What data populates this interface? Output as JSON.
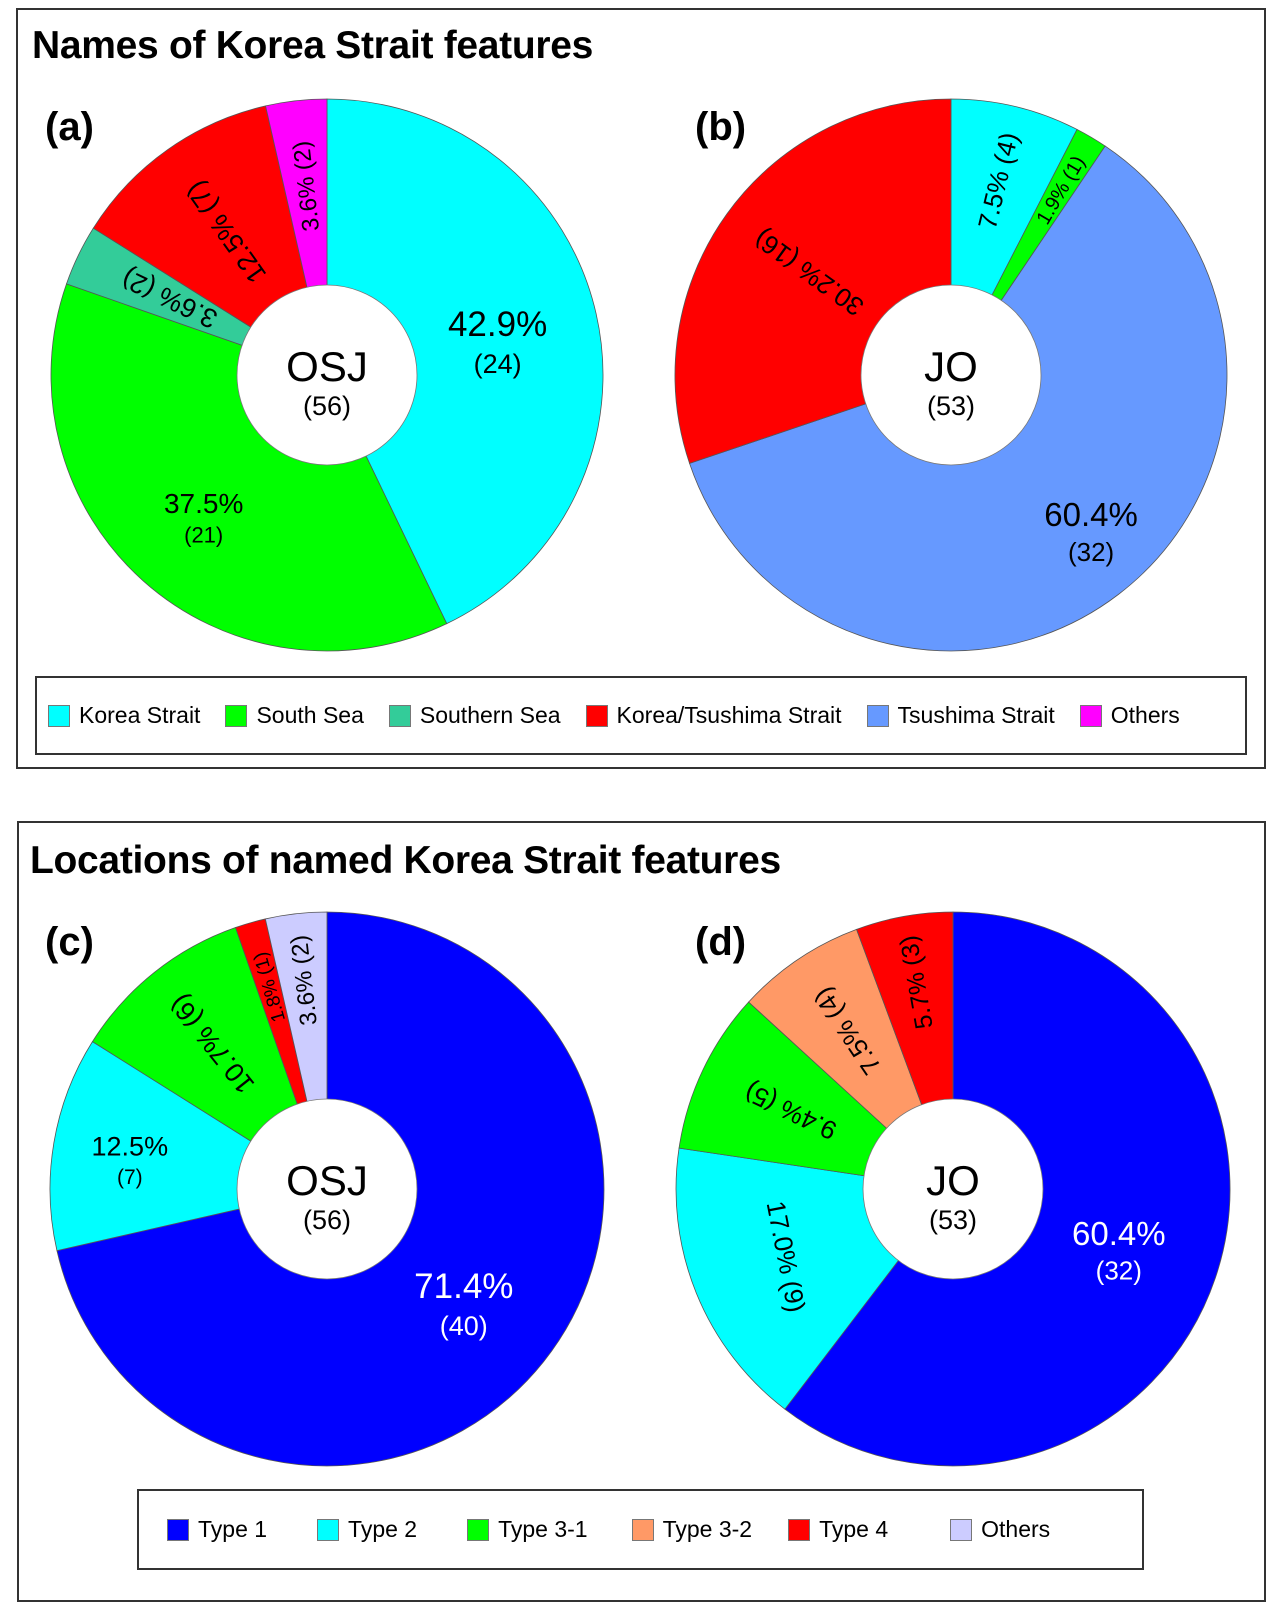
{
  "panels": [
    {
      "title": "Names of Korea Strait features",
      "legend": [
        {
          "label": "Korea Strait",
          "color": "#00FFFF"
        },
        {
          "label": "South Sea",
          "color": "#00FF00"
        },
        {
          "label": "Southern Sea",
          "color": "#33CC99"
        },
        {
          "label": "Korea/Tsushima Strait",
          "color": "#FF0000"
        },
        {
          "label": "Tsushima Strait",
          "color": "#6699FF"
        },
        {
          "label": "Others",
          "color": "#FF00FF"
        }
      ]
    },
    {
      "title": "Locations of named Korea Strait features",
      "legend": [
        {
          "label": "Type 1",
          "color": "#0000FF"
        },
        {
          "label": "Type 2",
          "color": "#00FFFF"
        },
        {
          "label": "Type 3-1",
          "color": "#00FF00"
        },
        {
          "label": "Type 3-2",
          "color": "#FF9966"
        },
        {
          "label": "Type 4",
          "color": "#FF0000"
        },
        {
          "label": "Others",
          "color": "#CCCCFF"
        }
      ]
    }
  ],
  "chart_data": [
    {
      "type": "pie",
      "id": "a",
      "panel_label": "(a)",
      "title": "Names of Korea Strait features",
      "center_label": "OSJ",
      "center_total": "(56)",
      "total": 56,
      "start": "12 o'clock, clockwise",
      "slices": [
        {
          "name": "Korea Strait",
          "value": 24,
          "percent": "42.9%",
          "count": "(24)",
          "color": "#00FFFF",
          "text_color": "#000000"
        },
        {
          "name": "South Sea",
          "value": 21,
          "percent": "37.5%",
          "count": "(21)",
          "color": "#00FF00",
          "text_color": "#000000"
        },
        {
          "name": "Southern Sea",
          "value": 2,
          "percent": "3.6%",
          "count": "(2)",
          "color": "#33CC99",
          "text_color": "#000000"
        },
        {
          "name": "Korea/Tsushima Strait",
          "value": 7,
          "percent": "12.5%",
          "count": "(7)",
          "color": "#FF0000",
          "text_color": "#000000"
        },
        {
          "name": "Others",
          "value": 2,
          "percent": "3.6%",
          "count": "(2)",
          "color": "#FF00FF",
          "text_color": "#000000"
        }
      ]
    },
    {
      "type": "pie",
      "id": "b",
      "panel_label": "(b)",
      "title": "Names of Korea Strait features",
      "center_label": "JO",
      "center_total": "(53)",
      "total": 53,
      "start": "12 o'clock, clockwise",
      "slices": [
        {
          "name": "Korea Strait",
          "value": 4,
          "percent": "7.5%",
          "count": "(4)",
          "color": "#00FFFF",
          "text_color": "#000000"
        },
        {
          "name": "South Sea",
          "value": 1,
          "percent": "1.9%",
          "count": "(1)",
          "color": "#00FF00",
          "text_color": "#000000"
        },
        {
          "name": "Tsushima Strait",
          "value": 32,
          "percent": "60.4%",
          "count": "(32)",
          "color": "#6699FF",
          "text_color": "#000000"
        },
        {
          "name": "Korea/Tsushima Strait",
          "value": 16,
          "percent": "30.2%",
          "count": "(16)",
          "color": "#FF0000",
          "text_color": "#000000"
        }
      ]
    },
    {
      "type": "pie",
      "id": "c",
      "panel_label": "(c)",
      "title": "Locations of named Korea Strait features",
      "center_label": "OSJ",
      "center_total": "(56)",
      "total": 56,
      "start": "12 o'clock, clockwise",
      "slices": [
        {
          "name": "Type 1",
          "value": 40,
          "percent": "71.4%",
          "count": "(40)",
          "color": "#0000FF",
          "text_color": "#FFFFFF"
        },
        {
          "name": "Type 2",
          "value": 7,
          "percent": "12.5%",
          "count": "(7)",
          "color": "#00FFFF",
          "text_color": "#000000"
        },
        {
          "name": "Type 3-1",
          "value": 6,
          "percent": "10.7%",
          "count": "(6)",
          "color": "#00FF00",
          "text_color": "#000000"
        },
        {
          "name": "Type 4",
          "value": 1,
          "percent": "1.8%",
          "count": "(1)",
          "color": "#FF0000",
          "text_color": "#000000"
        },
        {
          "name": "Others",
          "value": 2,
          "percent": "3.6%",
          "count": "(2)",
          "color": "#CCCCFF",
          "text_color": "#000000"
        }
      ]
    },
    {
      "type": "pie",
      "id": "d",
      "panel_label": "(d)",
      "title": "Locations of named Korea Strait features",
      "center_label": "JO",
      "center_total": "(53)",
      "total": 53,
      "start": "12 o'clock, clockwise",
      "slices": [
        {
          "name": "Type 1",
          "value": 32,
          "percent": "60.4%",
          "count": "(32)",
          "color": "#0000FF",
          "text_color": "#FFFFFF"
        },
        {
          "name": "Type 2",
          "value": 9,
          "percent": "17.0%",
          "count": "(9)",
          "color": "#00FFFF",
          "text_color": "#000000"
        },
        {
          "name": "Type 3-1",
          "value": 5,
          "percent": "9.4%",
          "count": "(5)",
          "color": "#00FF00",
          "text_color": "#000000"
        },
        {
          "name": "Type 3-2",
          "value": 4,
          "percent": "7.5%",
          "count": "(4)",
          "color": "#FF9966",
          "text_color": "#000000"
        },
        {
          "name": "Type 4",
          "value": 3,
          "percent": "5.7%",
          "count": "(3)",
          "color": "#FF0000",
          "text_color": "#000000"
        }
      ]
    }
  ]
}
